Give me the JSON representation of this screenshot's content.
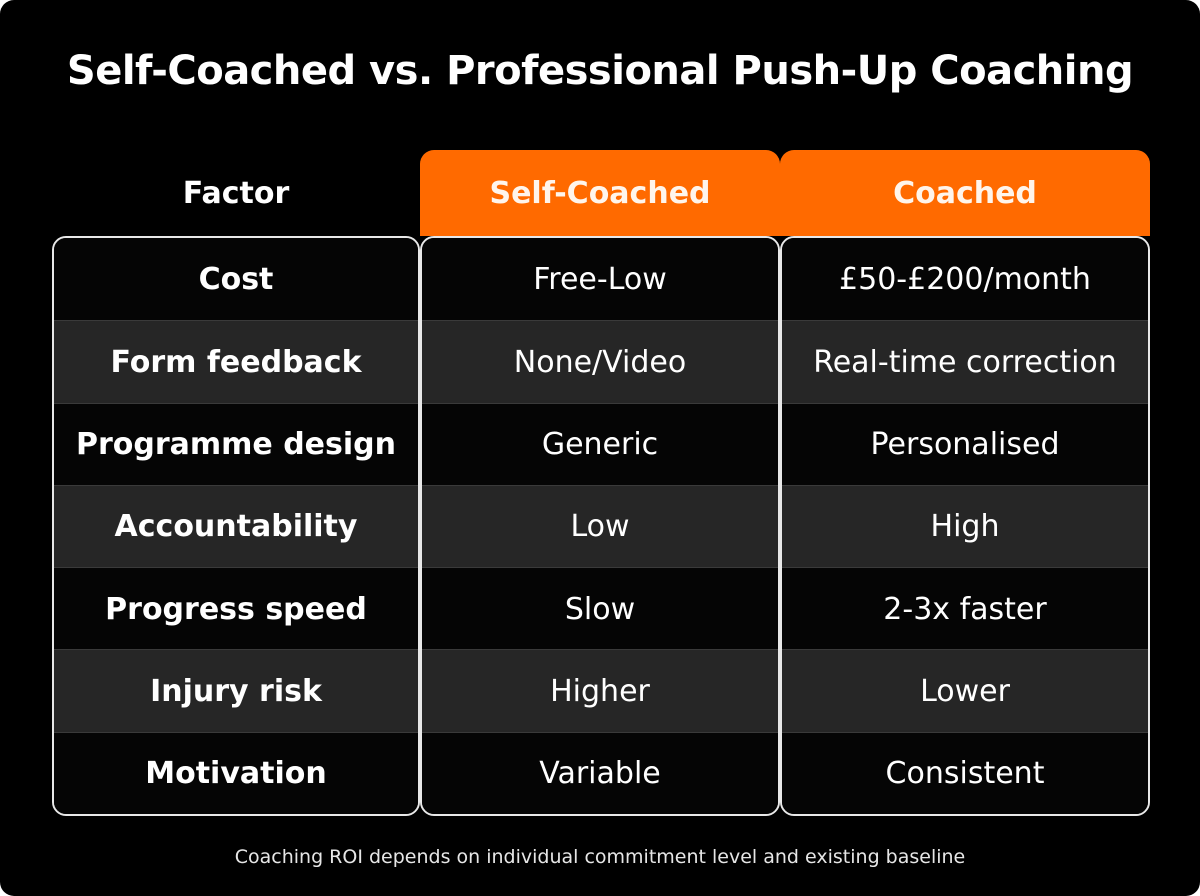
{
  "title": "Self-Coached vs. Professional Push-Up Coaching",
  "table": {
    "header": [
      "Factor",
      "Self-Coached",
      "Coached"
    ],
    "rows": [
      [
        "Cost",
        "Free-Low",
        "£50-£200/month"
      ],
      [
        "Form feedback",
        "None/Video",
        "Real-time correction"
      ],
      [
        "Programme design",
        "Generic",
        "Personalised"
      ],
      [
        "Accountability",
        "Low",
        "High"
      ],
      [
        "Progress speed",
        "Slow",
        "2-3x faster"
      ],
      [
        "Injury risk",
        "Higher",
        "Lower"
      ],
      [
        "Motivation",
        "Variable",
        "Consistent"
      ]
    ]
  },
  "footnote": "Coaching ROI depends on individual commitment level and existing baseline"
}
